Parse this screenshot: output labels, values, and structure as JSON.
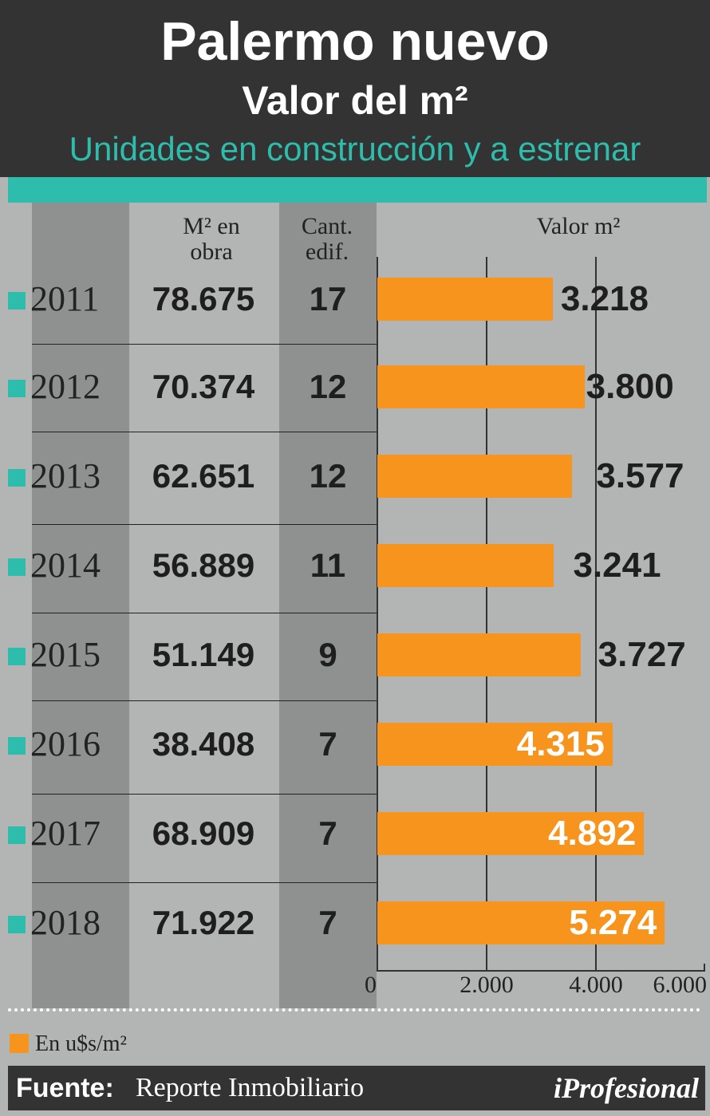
{
  "header": {
    "title": "Palermo nuevo",
    "subtitle": "Valor del m²",
    "tagline": "Unidades en construcción y a estrenar"
  },
  "table": {
    "col_m2_header": "M² en obra",
    "col_cant_header": "Cant. edif.",
    "col_valor_header": "Valor m²"
  },
  "chart_data": {
    "type": "bar",
    "orientation": "horizontal",
    "title": "Valor m²",
    "categories": [
      "2011",
      "2012",
      "2013",
      "2014",
      "2015",
      "2016",
      "2017",
      "2018"
    ],
    "values": [
      3218,
      3800,
      3577,
      3241,
      3727,
      4315,
      4892,
      5274
    ],
    "value_labels": [
      "3.218",
      "3.800",
      "3.577",
      "3.241",
      "3.727",
      "4.315",
      "4.892",
      "5.274"
    ],
    "m2_en_obra": [
      "78.675",
      "70.374",
      "62.651",
      "56.889",
      "51.149",
      "38.408",
      "68.909",
      "71.922"
    ],
    "cant_edif": [
      "17",
      "12",
      "12",
      "11",
      "9",
      "7",
      "7",
      "7"
    ],
    "xlim": [
      0,
      6000
    ],
    "xticks": [
      0,
      2000,
      4000,
      6000
    ],
    "xtick_labels": [
      "0",
      "2.000",
      "4.000",
      "6.000"
    ],
    "bar_color": "#f7941d"
  },
  "legend": {
    "label": "En u$s/m²"
  },
  "footer": {
    "source_label": "Fuente:",
    "source_value": "Reporte Inmobiliario",
    "brand": "iProfesional"
  },
  "colors": {
    "teal": "#2ebdad",
    "orange": "#f7941d",
    "dark": "#333333",
    "panel": "#b3b4b4"
  }
}
